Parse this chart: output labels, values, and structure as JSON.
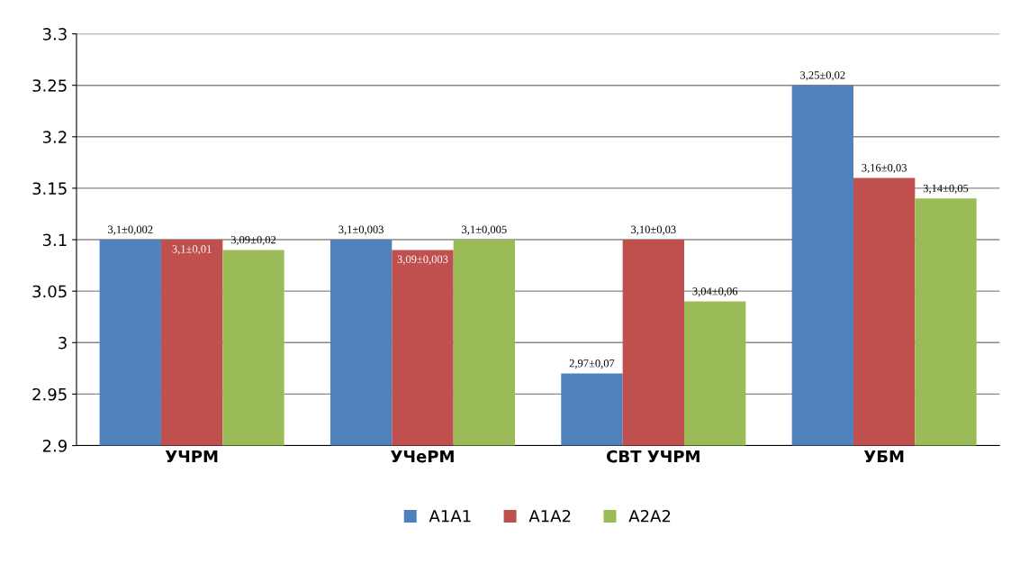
{
  "chart_data": {
    "type": "bar",
    "categories": [
      "УЧРМ",
      "УЧеРМ",
      "СВТ УЧРМ",
      "УБМ"
    ],
    "series": [
      {
        "name": "A1A1",
        "color": "#4f81bd",
        "values": [
          3.1,
          3.1,
          2.97,
          3.25
        ],
        "value_labels": [
          "3,1±0,002",
          "3,1±0,003",
          "2,97±0,07",
          "3,25±0,02"
        ]
      },
      {
        "name": "A1A2",
        "color": "#c0504d",
        "values": [
          3.1,
          3.09,
          3.1,
          3.16
        ],
        "value_labels": [
          "3,1±0,01",
          "3,09±0,003",
          "3,10±0,03",
          "3,16±0,03"
        ]
      },
      {
        "name": "A2A2",
        "color": "#9bbb59",
        "values": [
          3.09,
          3.1,
          3.04,
          3.14
        ],
        "value_labels": [
          "3,09±0,02",
          "3,1±0,005",
          "3,04±0,06",
          "3,14±0,05"
        ]
      }
    ],
    "ylim": [
      2.9,
      3.3
    ],
    "yticks": [
      2.9,
      2.95,
      3,
      3.05,
      3.1,
      3.15,
      3.2,
      3.25,
      3.3
    ],
    "grid": "y",
    "legend": "bottom"
  }
}
